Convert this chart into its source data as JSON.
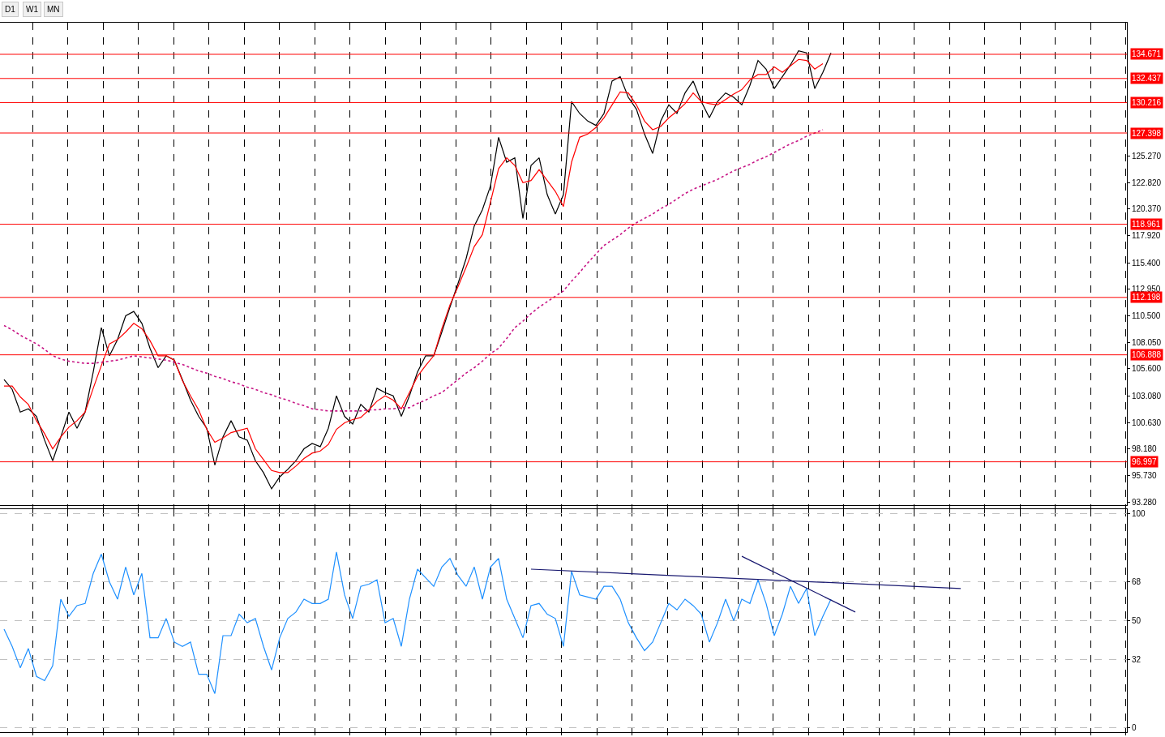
{
  "chart_data": [
    {
      "type": "line",
      "annotations": [
        "D1",
        "W1",
        "MN"
      ],
      "grid": "x",
      "marker": "none",
      "tick_labels": "y",
      "categories": [
        null,
        null,
        null,
        null,
        null,
        null,
        null,
        null,
        null,
        null,
        null,
        null,
        null,
        null,
        null,
        null,
        null,
        null,
        null,
        null,
        null,
        null,
        null,
        null,
        null,
        null,
        null,
        null,
        null,
        null,
        null,
        null,
        null,
        null,
        null,
        null,
        null,
        null,
        null,
        null,
        null,
        null,
        null,
        null,
        null,
        null,
        null,
        null,
        null,
        null,
        null,
        null,
        null,
        null,
        null,
        null,
        null,
        null,
        null,
        null,
        null,
        null,
        null,
        null,
        null,
        null,
        null,
        null,
        null,
        null,
        null,
        null,
        null,
        null,
        null,
        null,
        null,
        null,
        null,
        null,
        null,
        null,
        null,
        null,
        null,
        null,
        null,
        null,
        null,
        null,
        null,
        null,
        null,
        null,
        null,
        null,
        null,
        null,
        null,
        null,
        null,
        null,
        null,
        null,
        null,
        null,
        null,
        null,
        null,
        null,
        null,
        null,
        null,
        null,
        null,
        null,
        null,
        null,
        null,
        null,
        null,
        null,
        null,
        null,
        null,
        null,
        null,
        null,
        null,
        null,
        null,
        null,
        null,
        null,
        null,
        null,
        null,
        null,
        null
      ],
      "ylim": [
        93.0,
        137.6
      ],
      "yticks": [
        {
          "value": 93.28,
          "label": "93.280"
        },
        {
          "value": 95.73,
          "label": "95.730"
        },
        {
          "value": 98.18,
          "label": "98.180"
        },
        {
          "value": 100.63,
          "label": "100.630"
        },
        {
          "value": 103.08,
          "label": "103.080"
        },
        {
          "value": 105.6,
          "label": "105.600"
        },
        {
          "value": 108.05,
          "label": "108.050"
        },
        {
          "value": 110.5,
          "label": "110.500"
        },
        {
          "value": 112.95,
          "label": "112.950"
        },
        {
          "value": 115.4,
          "label": "115.400"
        },
        {
          "value": 117.92,
          "label": "117.920"
        },
        {
          "value": 120.37,
          "label": "120.370"
        },
        {
          "value": 122.82,
          "label": "122.820"
        },
        {
          "value": 125.27,
          "label": "125.270"
        }
      ],
      "ref_lines": [
        {
          "axis": "y",
          "value": 134.671,
          "label": "134.671",
          "color": "#ff0000"
        },
        {
          "axis": "y",
          "value": 132.437,
          "label": "132.437",
          "color": "#ff0000"
        },
        {
          "axis": "y",
          "value": 130.216,
          "label": "130.216",
          "color": "#ff0000"
        },
        {
          "axis": "y",
          "value": 127.398,
          "label": "127.398",
          "color": "#ff0000"
        },
        {
          "axis": "y",
          "value": 118.961,
          "label": "118.961",
          "color": "#ff0000"
        },
        {
          "axis": "y",
          "value": 112.198,
          "label": "112.198",
          "color": "#ff0000"
        },
        {
          "axis": "y",
          "value": 106.888,
          "label": "106.888",
          "color": "#ff0000"
        },
        {
          "axis": "y",
          "value": 96.997,
          "label": "96.997",
          "color": "#ff0000"
        }
      ],
      "series": [
        {
          "color": "#000000",
          "line_style": "solid",
          "values": [
            104.6,
            103.7,
            101.6,
            101.9,
            101.2,
            99.0,
            97.1,
            99.3,
            101.6,
            100.1,
            101.6,
            105.3,
            109.4,
            106.8,
            108.3,
            110.5,
            110.9,
            109.8,
            107.5,
            105.7,
            106.8,
            106.4,
            104.6,
            102.7,
            101.2,
            100.1,
            96.7,
            99.3,
            100.8,
            99.3,
            99.0,
            97.1,
            96.0,
            94.5,
            95.6,
            96.3,
            97.1,
            98.2,
            98.7,
            98.4,
            100.1,
            103.1,
            101.2,
            100.5,
            102.3,
            101.6,
            103.8,
            103.4,
            103.1,
            101.2,
            103.1,
            105.3,
            106.8,
            106.8,
            109.0,
            111.3,
            113.5,
            115.8,
            118.8,
            120.3,
            122.5,
            127.0,
            124.7,
            125.1,
            119.5,
            124.4,
            125.1,
            121.7,
            119.9,
            121.7,
            130.3,
            129.2,
            128.5,
            128.1,
            129.2,
            132.2,
            132.6,
            130.7,
            129.6,
            127.3,
            125.5,
            128.5,
            130.0,
            129.2,
            131.1,
            132.2,
            130.3,
            128.8,
            130.3,
            131.1,
            130.7,
            130.0,
            131.8,
            134.1,
            133.3,
            131.5,
            132.6,
            133.7,
            135.0,
            134.8,
            131.5,
            133.0,
            134.8,
            null,
            null,
            null,
            null,
            null,
            null,
            null,
            null,
            null,
            null,
            null,
            null,
            null,
            null,
            null,
            null,
            null,
            null,
            null,
            null,
            null,
            null,
            null,
            null,
            null,
            null,
            null,
            null,
            null,
            null,
            null,
            null,
            null,
            null,
            null,
            null
          ]
        },
        {
          "color": "#ff0000",
          "line_style": "solid",
          "values": [
            104.0,
            104.0,
            103.0,
            102.3,
            100.8,
            99.6,
            98.2,
            99.3,
            100.2,
            100.8,
            101.6,
            103.8,
            105.9,
            107.9,
            108.3,
            109.0,
            109.8,
            109.3,
            108.2,
            106.8,
            106.8,
            106.4,
            104.5,
            103.1,
            101.8,
            100.0,
            98.8,
            99.2,
            99.7,
            99.9,
            100.1,
            98.2,
            97.2,
            96.2,
            96.0,
            96.0,
            96.6,
            97.3,
            97.8,
            98.0,
            98.6,
            100.0,
            100.6,
            100.9,
            101.1,
            101.8,
            102.6,
            103.1,
            102.7,
            101.9,
            103.4,
            104.9,
            105.9,
            106.8,
            109.3,
            111.5,
            113.2,
            115.0,
            116.9,
            118.0,
            121.0,
            124.1,
            125.1,
            124.4,
            122.8,
            123.0,
            124.0,
            123.0,
            122.0,
            120.6,
            124.7,
            127.0,
            127.3,
            127.9,
            128.8,
            130.0,
            131.2,
            131.1,
            130.0,
            128.5,
            127.7,
            128.0,
            128.8,
            129.4,
            130.1,
            131.1,
            130.3,
            130.1,
            130.0,
            130.5,
            131.0,
            131.4,
            132.3,
            132.8,
            132.8,
            133.5,
            133.0,
            133.6,
            134.2,
            134.1,
            133.3,
            133.8,
            null,
            null,
            null,
            null,
            null,
            null,
            null,
            null,
            null,
            null,
            null,
            null,
            null,
            null,
            null,
            null,
            null,
            null,
            null,
            null,
            null,
            null,
            null,
            null,
            null,
            null,
            null,
            null,
            null,
            null,
            null,
            null,
            null,
            null,
            null,
            null,
            null
          ]
        },
        {
          "color": "#c71585",
          "line_style": "dotted",
          "values": [
            109.6,
            109.2,
            108.7,
            108.3,
            107.9,
            107.4,
            106.8,
            106.5,
            106.3,
            106.2,
            106.1,
            106.1,
            106.2,
            106.3,
            106.4,
            106.6,
            106.8,
            106.7,
            106.6,
            106.5,
            106.4,
            106.2,
            106.0,
            105.7,
            105.4,
            105.2,
            104.9,
            104.7,
            104.4,
            104.2,
            103.9,
            103.7,
            103.4,
            103.2,
            102.9,
            102.7,
            102.4,
            102.2,
            101.9,
            101.8,
            101.7,
            101.7,
            101.7,
            101.7,
            101.7,
            101.8,
            101.8,
            101.9,
            101.9,
            102.0,
            102.0,
            102.4,
            102.7,
            103.1,
            103.4,
            104.0,
            104.6,
            105.2,
            105.7,
            106.3,
            107.0,
            107.5,
            108.4,
            109.4,
            110.0,
            110.7,
            111.3,
            111.8,
            112.3,
            112.8,
            113.7,
            114.5,
            115.4,
            116.2,
            117.0,
            117.5,
            118.0,
            118.6,
            119.1,
            119.5,
            119.9,
            120.4,
            120.8,
            121.3,
            121.8,
            122.2,
            122.5,
            122.8,
            123.1,
            123.5,
            123.9,
            124.2,
            124.5,
            124.9,
            125.2,
            125.6,
            126.0,
            126.4,
            126.7,
            127.1,
            127.4,
            127.7,
            null,
            null,
            null,
            null,
            null,
            null,
            null,
            null,
            null,
            null,
            null,
            null,
            null,
            null,
            null,
            null,
            null,
            null,
            null,
            null,
            null,
            null,
            null,
            null,
            null,
            null,
            null,
            null,
            null,
            null,
            null,
            null,
            null,
            null,
            null,
            null,
            null
          ]
        }
      ]
    },
    {
      "type": "line",
      "grid": true,
      "marker": "none",
      "tick_labels": "y",
      "categories": [
        null,
        null,
        null,
        null,
        null,
        null,
        null,
        null,
        null,
        null,
        null,
        null,
        null,
        null,
        null,
        null,
        null,
        null,
        null,
        null,
        null,
        null,
        null,
        null,
        null,
        null,
        null,
        null,
        null,
        null,
        null,
        null,
        null,
        null,
        null,
        null,
        null,
        null,
        null,
        null,
        null,
        null,
        null,
        null,
        null,
        null,
        null,
        null,
        null,
        null,
        null,
        null,
        null,
        null,
        null,
        null,
        null,
        null,
        null,
        null,
        null,
        null,
        null,
        null,
        null,
        null,
        null,
        null,
        null,
        null,
        null,
        null,
        null,
        null,
        null,
        null,
        null,
        null,
        null,
        null,
        null,
        null,
        null,
        null,
        null,
        null,
        null,
        null,
        null,
        null,
        null,
        null,
        null,
        null,
        null,
        null,
        null,
        null,
        null,
        null,
        null,
        null,
        null,
        null,
        null,
        null,
        null,
        null,
        null,
        null,
        null,
        null,
        null,
        null,
        null,
        null,
        null,
        null,
        null,
        null,
        null,
        null,
        null,
        null,
        null,
        null,
        null,
        null,
        null,
        null,
        null,
        null,
        null,
        null,
        null,
        null,
        null,
        null,
        null
      ],
      "ylim": [
        -2,
        102
      ],
      "yticks": [
        0,
        32,
        50,
        68,
        100
      ],
      "series": [
        {
          "color": "#1e90ff",
          "line_style": "solid",
          "values": [
            46,
            38,
            28,
            37,
            24,
            22,
            29,
            60,
            52,
            57,
            58,
            72,
            81,
            68,
            60,
            75,
            62,
            72,
            42,
            42,
            51,
            40,
            38,
            40,
            25,
            25,
            16,
            43,
            43,
            53,
            49,
            51,
            38,
            27,
            42,
            51,
            54,
            60,
            58,
            58,
            60,
            82,
            62,
            51,
            66,
            67,
            69,
            49,
            51,
            38,
            60,
            74,
            70,
            66,
            75,
            79,
            71,
            66,
            75,
            60,
            75,
            79,
            60,
            51,
            42,
            57,
            58,
            53,
            51,
            38,
            73,
            62,
            61,
            60,
            66,
            66,
            60,
            49,
            42,
            36,
            40,
            49,
            58,
            55,
            60,
            57,
            53,
            40,
            49,
            60,
            50,
            60,
            58,
            69,
            58,
            43,
            53,
            66,
            58,
            65,
            43,
            52,
            60,
            null,
            null,
            null,
            null,
            null,
            null,
            null,
            null,
            null,
            null,
            null,
            null,
            null,
            null,
            null,
            null,
            null,
            null,
            null,
            null,
            null,
            null,
            null,
            null,
            null,
            null,
            null,
            null,
            null,
            null,
            null,
            null,
            null,
            null,
            null,
            null
          ]
        },
        {
          "color": "#191970",
          "line_style": "solid",
          "values": [
            null,
            null,
            null,
            null,
            null,
            null,
            null,
            null,
            null,
            null,
            null,
            null,
            null,
            null,
            null,
            null,
            null,
            null,
            null,
            null,
            null,
            null,
            null,
            null,
            null,
            null,
            null,
            null,
            null,
            null,
            null,
            null,
            null,
            null,
            null,
            null,
            null,
            null,
            null,
            null,
            null,
            null,
            null,
            null,
            null,
            null,
            null,
            null,
            null,
            null,
            null,
            null,
            null,
            null,
            null,
            null,
            null,
            null,
            null,
            null,
            null,
            null,
            null,
            null,
            null,
            74,
            null,
            null,
            null,
            null,
            null,
            null,
            null,
            null,
            null,
            null,
            null,
            null,
            null,
            null,
            null,
            null,
            null,
            null,
            null,
            null,
            null,
            null,
            null,
            null,
            null,
            null,
            null,
            null,
            null,
            null,
            null,
            null,
            null,
            null,
            null,
            null,
            null,
            null,
            null,
            null,
            null,
            null,
            null,
            null,
            null,
            null,
            null,
            null,
            null,
            null,
            null,
            null,
            65,
            null,
            null,
            null,
            null,
            null,
            null,
            null,
            null,
            null,
            null,
            null,
            null,
            null,
            null,
            null,
            null,
            null,
            null,
            null,
            null
          ]
        },
        {
          "color": "#191970",
          "line_style": "solid",
          "values": [
            null,
            null,
            null,
            null,
            null,
            null,
            null,
            null,
            null,
            null,
            null,
            null,
            null,
            null,
            null,
            null,
            null,
            null,
            null,
            null,
            null,
            null,
            null,
            null,
            null,
            null,
            null,
            null,
            null,
            null,
            null,
            null,
            null,
            null,
            null,
            null,
            null,
            null,
            null,
            null,
            null,
            null,
            null,
            null,
            null,
            null,
            null,
            null,
            null,
            null,
            null,
            null,
            null,
            null,
            null,
            null,
            null,
            null,
            null,
            null,
            null,
            null,
            null,
            null,
            null,
            null,
            null,
            null,
            null,
            null,
            null,
            null,
            null,
            null,
            null,
            null,
            null,
            null,
            null,
            null,
            null,
            null,
            null,
            null,
            null,
            null,
            null,
            null,
            null,
            null,
            null,
            80,
            null,
            null,
            null,
            null,
            null,
            null,
            null,
            null,
            null,
            null,
            null,
            null,
            null,
            54,
            null,
            null,
            null,
            null,
            null,
            null,
            null,
            null,
            null,
            null,
            null,
            null,
            null,
            null,
            null,
            null,
            null,
            null,
            null,
            null,
            null,
            null,
            null,
            null,
            null,
            null,
            null,
            null,
            null,
            null,
            null,
            null,
            null
          ]
        }
      ]
    }
  ]
}
